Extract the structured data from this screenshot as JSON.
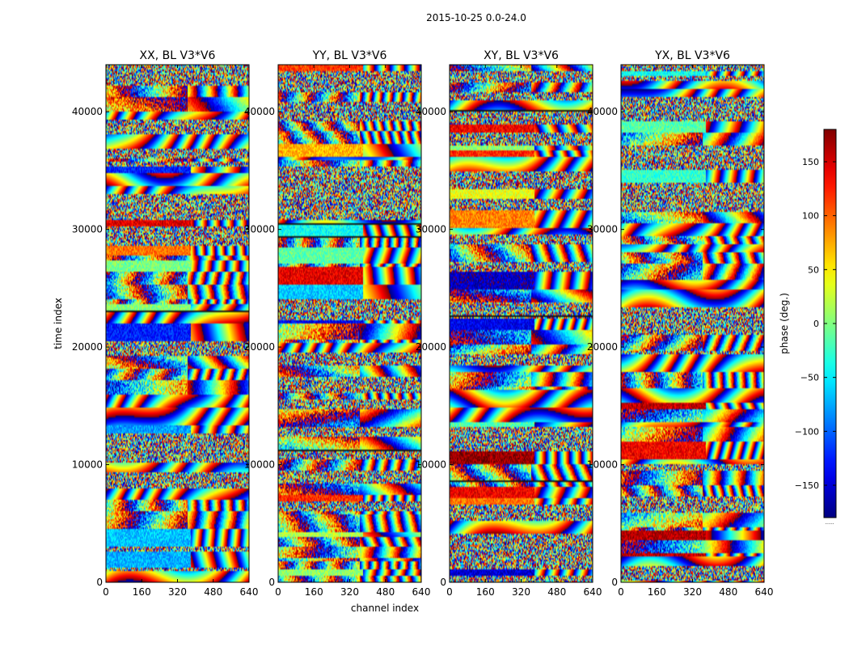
{
  "figure": {
    "suptitle": "2015-10-25 0.0-24.0",
    "xlabel": "channel index",
    "ylabel": "time index",
    "colorbar_label": "phase (deg.)",
    "colorbar_extra": "......"
  },
  "chart_data": [
    {
      "type": "heatmap",
      "title": "XX, BL V3*V6",
      "x_range": [
        0,
        640
      ],
      "y_range": [
        0,
        44000
      ],
      "x_ticks": [
        0,
        160,
        320,
        480,
        640
      ],
      "y_ticks": [
        0,
        10000,
        20000,
        30000,
        40000
      ],
      "colormap": "jet",
      "value_range": [
        -180,
        180
      ],
      "seed": 11
    },
    {
      "type": "heatmap",
      "title": "YY, BL V3*V6",
      "x_range": [
        0,
        640
      ],
      "y_range": [
        0,
        44000
      ],
      "x_ticks": [
        0,
        160,
        320,
        480,
        640
      ],
      "y_ticks": [
        0,
        10000,
        20000,
        30000,
        40000
      ],
      "colormap": "jet",
      "value_range": [
        -180,
        180
      ],
      "seed": 23
    },
    {
      "type": "heatmap",
      "title": "XY, BL V3*V6",
      "x_range": [
        0,
        640
      ],
      "y_range": [
        0,
        44000
      ],
      "x_ticks": [
        0,
        160,
        320,
        480,
        640
      ],
      "y_ticks": [
        0,
        10000,
        20000,
        30000,
        40000
      ],
      "colormap": "jet",
      "value_range": [
        -180,
        180
      ],
      "seed": 37
    },
    {
      "type": "heatmap",
      "title": "YX, BL V3*V6",
      "x_range": [
        0,
        640
      ],
      "y_range": [
        0,
        44000
      ],
      "x_ticks": [
        0,
        160,
        320,
        480,
        640
      ],
      "y_ticks": [
        0,
        10000,
        20000,
        30000,
        40000
      ],
      "colormap": "jet",
      "value_range": [
        -180,
        180
      ],
      "seed": 53
    }
  ],
  "colorbar": {
    "colormap": "jet",
    "range": [
      -180,
      180
    ],
    "ticks": [
      150,
      100,
      50,
      0,
      -50,
      -100,
      -150
    ],
    "tick_labels": [
      "150",
      "100",
      "50",
      "0",
      "−50",
      "−100",
      "−150"
    ]
  },
  "colors": {
    "axis": "#000000",
    "background": "#ffffff"
  }
}
